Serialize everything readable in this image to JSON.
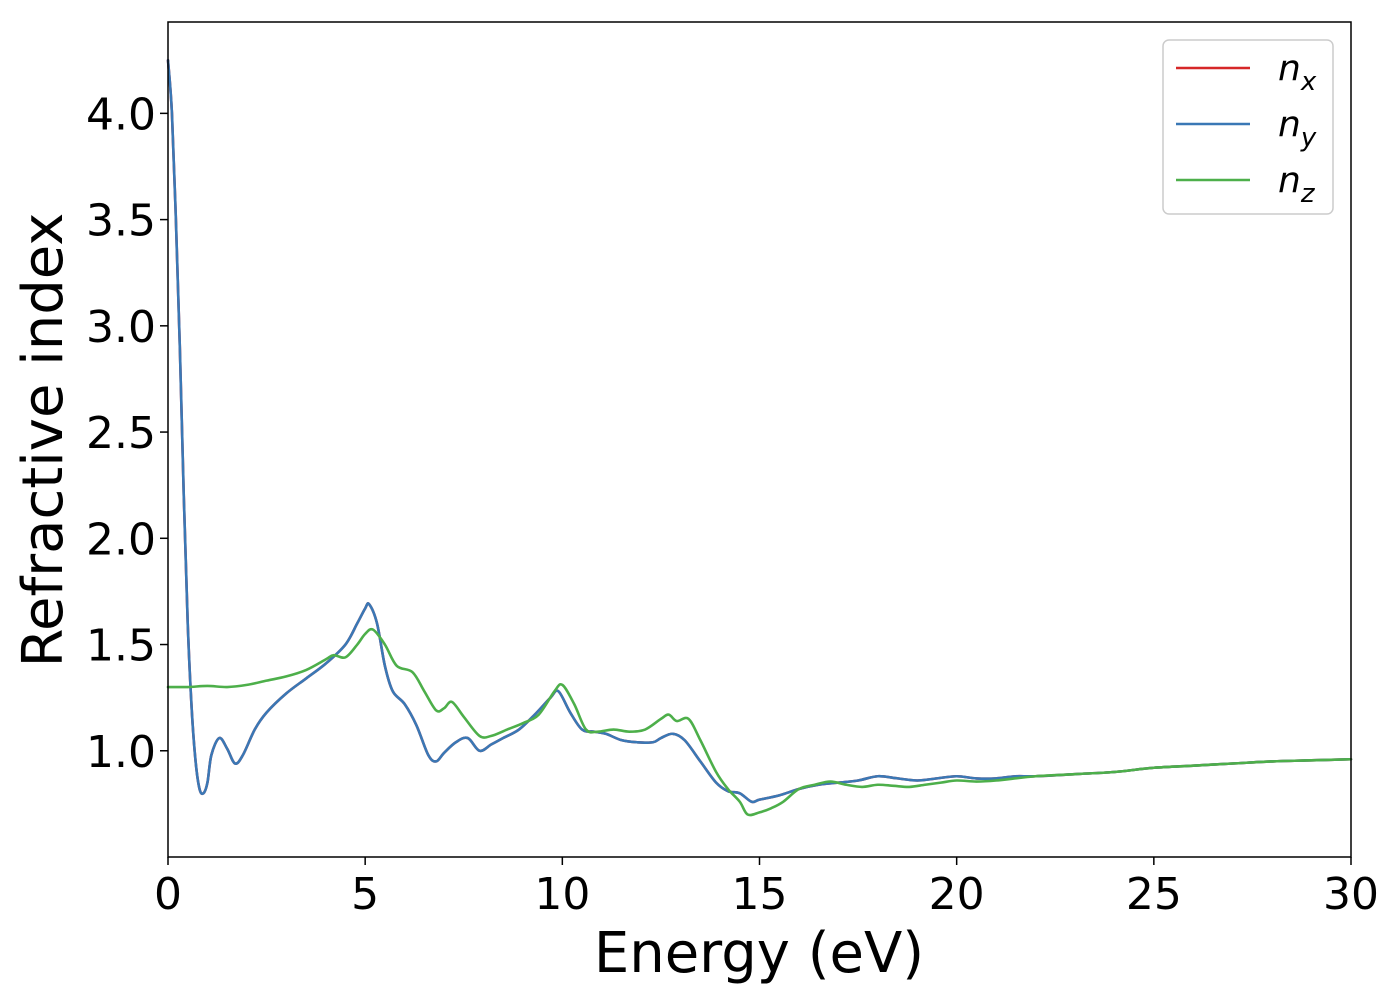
{
  "chart_data": {
    "type": "line",
    "title": "",
    "xlabel": "Energy (eV)",
    "ylabel": "Refractive index",
    "xlim": [
      0,
      30
    ],
    "ylim": [
      0.5,
      4.43
    ],
    "xticks": [
      0,
      5,
      10,
      15,
      20,
      25,
      30
    ],
    "xtick_labels": [
      "0",
      "5",
      "10",
      "15",
      "20",
      "25",
      "30"
    ],
    "yticks": [
      1.0,
      1.5,
      2.0,
      2.5,
      3.0,
      3.5,
      4.0
    ],
    "ytick_labels": [
      "1.0",
      "1.5",
      "2.0",
      "2.5",
      "3.0",
      "3.5",
      "4.0"
    ],
    "grid": false,
    "legend_position": "top-right",
    "series": [
      {
        "name": "n",
        "sub": "x",
        "color": "#d62728",
        "x": [
          0,
          0.1,
          0.2,
          0.3,
          0.4,
          0.5,
          0.6,
          0.7,
          0.8,
          0.9,
          1.0,
          1.1,
          1.3,
          1.5,
          1.7,
          1.9,
          2.2,
          2.5,
          3.0,
          3.5,
          4.0,
          4.5,
          4.8,
          5.0,
          5.1,
          5.3,
          5.5,
          5.7,
          6.0,
          6.3,
          6.6,
          6.8,
          7.0,
          7.3,
          7.6,
          7.9,
          8.2,
          8.5,
          8.9,
          9.3,
          9.7,
          9.9,
          10.2,
          10.5,
          10.8,
          11.1,
          11.5,
          11.9,
          12.3,
          12.5,
          12.8,
          13.1,
          13.5,
          13.9,
          14.2,
          14.5,
          14.8,
          15.0,
          15.5,
          16.0,
          16.5,
          17.0,
          17.5,
          18.0,
          18.5,
          19.0,
          19.5,
          20.0,
          20.5,
          21.0,
          21.5,
          22.0,
          23.0,
          24.0,
          25.0,
          26.0,
          27.0,
          28.0,
          29.0,
          30.0
        ],
        "values": [
          4.25,
          4.0,
          3.5,
          2.9,
          2.2,
          1.6,
          1.2,
          0.95,
          0.82,
          0.8,
          0.85,
          0.98,
          1.06,
          1.01,
          0.94,
          0.98,
          1.1,
          1.18,
          1.27,
          1.34,
          1.41,
          1.5,
          1.6,
          1.67,
          1.69,
          1.6,
          1.4,
          1.28,
          1.22,
          1.12,
          0.98,
          0.95,
          0.99,
          1.04,
          1.06,
          1.0,
          1.03,
          1.06,
          1.1,
          1.17,
          1.25,
          1.28,
          1.18,
          1.1,
          1.09,
          1.08,
          1.05,
          1.04,
          1.04,
          1.06,
          1.08,
          1.05,
          0.95,
          0.85,
          0.81,
          0.8,
          0.76,
          0.77,
          0.79,
          0.82,
          0.84,
          0.85,
          0.86,
          0.88,
          0.87,
          0.86,
          0.87,
          0.88,
          0.87,
          0.87,
          0.88,
          0.88,
          0.89,
          0.9,
          0.92,
          0.93,
          0.94,
          0.95,
          0.955,
          0.96
        ]
      },
      {
        "name": "n",
        "sub": "y",
        "color": "#3a78b5",
        "x": [
          0,
          0.1,
          0.2,
          0.3,
          0.4,
          0.5,
          0.6,
          0.7,
          0.8,
          0.9,
          1.0,
          1.1,
          1.3,
          1.5,
          1.7,
          1.9,
          2.2,
          2.5,
          3.0,
          3.5,
          4.0,
          4.5,
          4.8,
          5.0,
          5.1,
          5.3,
          5.5,
          5.7,
          6.0,
          6.3,
          6.6,
          6.8,
          7.0,
          7.3,
          7.6,
          7.9,
          8.2,
          8.5,
          8.9,
          9.3,
          9.7,
          9.9,
          10.2,
          10.5,
          10.8,
          11.1,
          11.5,
          11.9,
          12.3,
          12.5,
          12.8,
          13.1,
          13.5,
          13.9,
          14.2,
          14.5,
          14.8,
          15.0,
          15.5,
          16.0,
          16.5,
          17.0,
          17.5,
          18.0,
          18.5,
          19.0,
          19.5,
          20.0,
          20.5,
          21.0,
          21.5,
          22.0,
          23.0,
          24.0,
          25.0,
          26.0,
          27.0,
          28.0,
          29.0,
          30.0
        ],
        "values": [
          4.25,
          4.0,
          3.5,
          2.9,
          2.2,
          1.6,
          1.2,
          0.95,
          0.82,
          0.8,
          0.85,
          0.98,
          1.06,
          1.01,
          0.94,
          0.98,
          1.1,
          1.18,
          1.27,
          1.34,
          1.41,
          1.5,
          1.6,
          1.67,
          1.69,
          1.6,
          1.4,
          1.28,
          1.22,
          1.12,
          0.98,
          0.95,
          0.99,
          1.04,
          1.06,
          1.0,
          1.03,
          1.06,
          1.1,
          1.17,
          1.25,
          1.28,
          1.18,
          1.1,
          1.09,
          1.08,
          1.05,
          1.04,
          1.04,
          1.06,
          1.08,
          1.05,
          0.95,
          0.85,
          0.81,
          0.8,
          0.76,
          0.77,
          0.79,
          0.82,
          0.84,
          0.85,
          0.86,
          0.88,
          0.87,
          0.86,
          0.87,
          0.88,
          0.87,
          0.87,
          0.88,
          0.88,
          0.89,
          0.9,
          0.92,
          0.93,
          0.94,
          0.95,
          0.955,
          0.96
        ]
      },
      {
        "name": "n",
        "sub": "z",
        "color": "#4daf4a",
        "x": [
          0,
          0.5,
          1.0,
          1.5,
          2.0,
          2.5,
          3.0,
          3.5,
          4.0,
          4.2,
          4.5,
          4.8,
          5.0,
          5.2,
          5.5,
          5.8,
          6.2,
          6.5,
          6.8,
          7.0,
          7.2,
          7.5,
          7.9,
          8.2,
          8.6,
          9.0,
          9.4,
          9.8,
          10.0,
          10.3,
          10.6,
          10.9,
          11.3,
          11.7,
          12.1,
          12.5,
          12.7,
          12.9,
          13.2,
          13.5,
          13.9,
          14.2,
          14.5,
          14.7,
          15.0,
          15.3,
          15.6,
          16.0,
          16.4,
          16.8,
          17.2,
          17.6,
          18.0,
          18.4,
          18.8,
          19.2,
          19.6,
          20.0,
          20.5,
          21.0,
          22.0,
          23.0,
          24.0,
          25.0,
          26.0,
          27.0,
          28.0,
          29.0,
          30.0
        ],
        "values": [
          1.3,
          1.3,
          1.305,
          1.3,
          1.31,
          1.33,
          1.35,
          1.38,
          1.43,
          1.45,
          1.44,
          1.5,
          1.55,
          1.57,
          1.5,
          1.4,
          1.37,
          1.28,
          1.19,
          1.2,
          1.23,
          1.16,
          1.07,
          1.07,
          1.1,
          1.13,
          1.17,
          1.28,
          1.31,
          1.22,
          1.1,
          1.09,
          1.1,
          1.09,
          1.1,
          1.15,
          1.17,
          1.14,
          1.15,
          1.05,
          0.9,
          0.82,
          0.76,
          0.7,
          0.71,
          0.73,
          0.76,
          0.82,
          0.84,
          0.855,
          0.84,
          0.83,
          0.84,
          0.835,
          0.83,
          0.84,
          0.85,
          0.86,
          0.855,
          0.86,
          0.88,
          0.89,
          0.9,
          0.92,
          0.93,
          0.94,
          0.95,
          0.955,
          0.96
        ]
      }
    ]
  }
}
